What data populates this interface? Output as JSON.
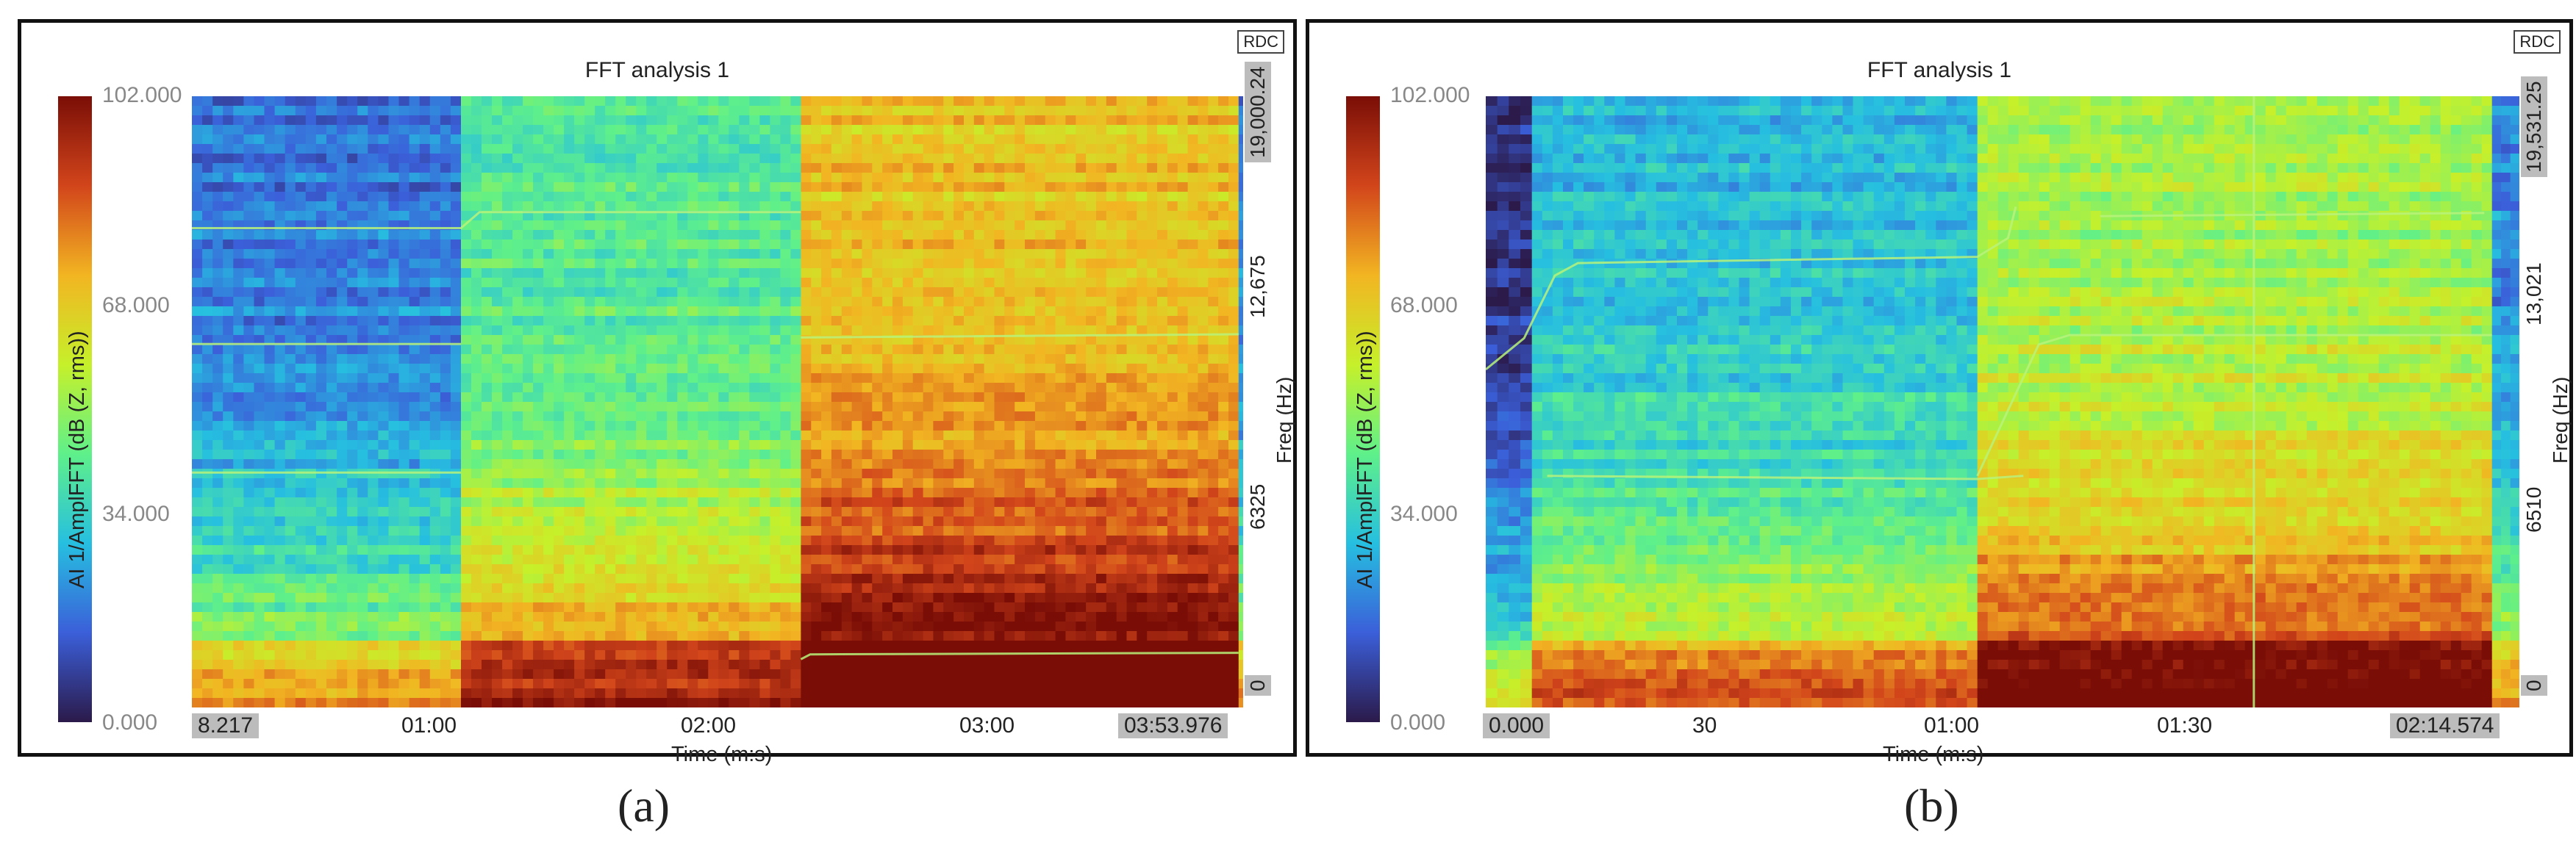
{
  "colors": {
    "frame": "#111111",
    "tick_box": "#bcbcbc",
    "tick_muted": "#888888"
  },
  "chart_data": [
    {
      "type": "heatmap",
      "title": "FFT analysis 1",
      "badge": "RDC",
      "caption": "(a)",
      "xlabel": "Time (m:s)",
      "ylabel": "Freq (Hz)",
      "colorbar_label": "AI 1/AmplFFT (dB (Z, rms))",
      "colorbar_range": [
        0,
        102
      ],
      "colorbar_ticks": [
        "0.000",
        "34.000",
        "68.000",
        "102.000"
      ],
      "colorbar_colors": [
        "#2b1a4a",
        "#3b5fd9",
        "#26bfe0",
        "#5ff08a",
        "#c6f02a",
        "#f2b522",
        "#d2451b",
        "#7a0e07"
      ],
      "x_range_s": [
        8.217,
        233.976
      ],
      "x_ticks": [
        "8.217",
        "01:00",
        "02:00",
        "03:00",
        "03:53.976"
      ],
      "y_range_hz": [
        0,
        19000.24
      ],
      "y_ticks": [
        "0",
        "6325",
        "12,675",
        "19,000.24"
      ],
      "segments_s": [
        {
          "t0": 8.217,
          "t1": 66,
          "level": 0.18
        },
        {
          "t0": 66,
          "t1": 139,
          "level": 0.4
        },
        {
          "t0": 139,
          "t1": 233,
          "level": 0.68
        },
        {
          "t0": 233,
          "t1": 233.976,
          "level": 0.2
        }
      ],
      "ridges": [
        {
          "points": [
            [
              8.217,
              14900
            ],
            [
              66,
              14900
            ],
            [
              70,
              15400
            ],
            [
              139,
              15400
            ]
          ]
        },
        {
          "points": [
            [
              8.217,
              11300
            ],
            [
              66,
              11300
            ]
          ]
        },
        {
          "points": [
            [
              8.217,
              7300
            ],
            [
              66,
              7300
            ]
          ]
        },
        {
          "points": [
            [
              139,
              11500
            ],
            [
              233,
              11600
            ]
          ]
        },
        {
          "points": [
            [
              139,
              1500
            ],
            [
              141,
              1650
            ],
            [
              233,
              1700
            ]
          ]
        }
      ]
    },
    {
      "type": "heatmap",
      "title": "FFT analysis 1",
      "badge": "RDC",
      "caption": "(b)",
      "xlabel": "Time (m:s)",
      "ylabel": "Freq (Hz)",
      "colorbar_label": "AI 1/AmplFFT (dB (Z, rms))",
      "colorbar_range": [
        0,
        102
      ],
      "colorbar_ticks": [
        "0.000",
        "34.000",
        "68.000",
        "102.000"
      ],
      "colorbar_colors": [
        "#2b1a4a",
        "#3b5fd9",
        "#26bfe0",
        "#5ff08a",
        "#c6f02a",
        "#f2b522",
        "#d2451b",
        "#7a0e07"
      ],
      "x_range_s": [
        0,
        134.574
      ],
      "x_ticks": [
        "0.000",
        "30",
        "01:00",
        "01:30",
        "02:14.574"
      ],
      "y_range_hz": [
        0,
        19531.25
      ],
      "y_ticks": [
        "0",
        "6510",
        "13,021",
        "19,531.25"
      ],
      "segments_s": [
        {
          "t0": 0,
          "t1": 6,
          "level": 0.05
        },
        {
          "t0": 6,
          "t1": 64,
          "level": 0.28
        },
        {
          "t0": 64,
          "t1": 131,
          "level": 0.52
        },
        {
          "t0": 131,
          "t1": 134.574,
          "level": 0.2
        }
      ],
      "ridges": [
        {
          "points": [
            [
              0,
              10800
            ],
            [
              5,
              11800
            ],
            [
              9,
              13800
            ],
            [
              12,
              14200
            ],
            [
              64,
              14400
            ],
            [
              68,
              15000
            ],
            [
              69,
              16000
            ]
          ]
        },
        {
          "points": [
            [
              8,
              7400
            ],
            [
              64,
              7300
            ],
            [
              70,
              7400
            ]
          ]
        },
        {
          "points": [
            [
              64,
              7400
            ],
            [
              72,
              11600
            ],
            [
              76,
              11900
            ],
            [
              131,
              11900
            ]
          ]
        },
        {
          "points": [
            [
              80,
              15700
            ],
            [
              130,
              15800
            ]
          ]
        },
        {
          "points": [
            [
              100,
              0
            ],
            [
              100,
              19531.25
            ]
          ]
        }
      ]
    }
  ]
}
